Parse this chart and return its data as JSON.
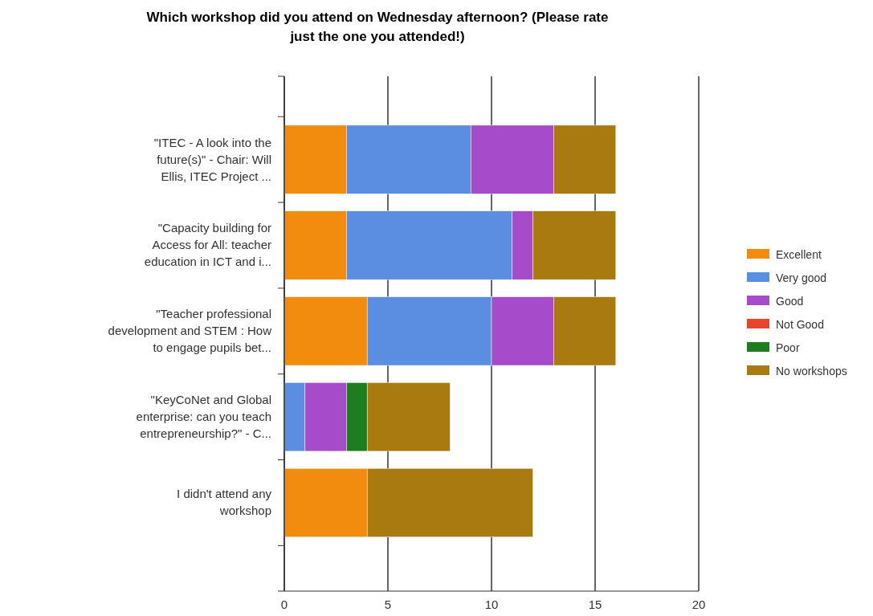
{
  "chart_data": {
    "type": "bar",
    "orientation": "horizontal",
    "stacked": true,
    "title": "Which workshop did you attend on Wednesday afternoon? (Please rate just the one you attended!)",
    "categories": [
      "\"ITEC - A look into the future(s)\" - Chair: Will Ellis, ITEC Project ...",
      "\"Capacity building for Access for All: teacher education in ICT and i...",
      "\"Teacher professional development and STEM : How to engage pupils bet...",
      "\"KeyCoNet and Global enterprise: can you teach entrepreneurship?\" - C...",
      "I didn't attend any workshop"
    ],
    "series": [
      {
        "name": "Excellent",
        "color": "#f28c0f",
        "values": [
          3,
          3,
          4,
          0,
          4
        ]
      },
      {
        "name": "Very good",
        "color": "#5b8de0",
        "values": [
          6,
          8,
          6,
          1,
          0
        ]
      },
      {
        "name": "Good",
        "color": "#a64bc9",
        "values": [
          4,
          1,
          3,
          2,
          0
        ]
      },
      {
        "name": "Not Good",
        "color": "#e8452c",
        "values": [
          0,
          0,
          0,
          0,
          0
        ]
      },
      {
        "name": "Poor",
        "color": "#1e7d1e",
        "values": [
          0,
          0,
          0,
          1,
          0
        ]
      },
      {
        "name": "No workshops",
        "color": "#a87a10",
        "values": [
          3,
          4,
          3,
          4,
          8
        ]
      }
    ],
    "xlim": [
      0,
      20
    ],
    "xticks": [
      0,
      5,
      10,
      15,
      20
    ],
    "grid": "x",
    "legend": "right"
  }
}
